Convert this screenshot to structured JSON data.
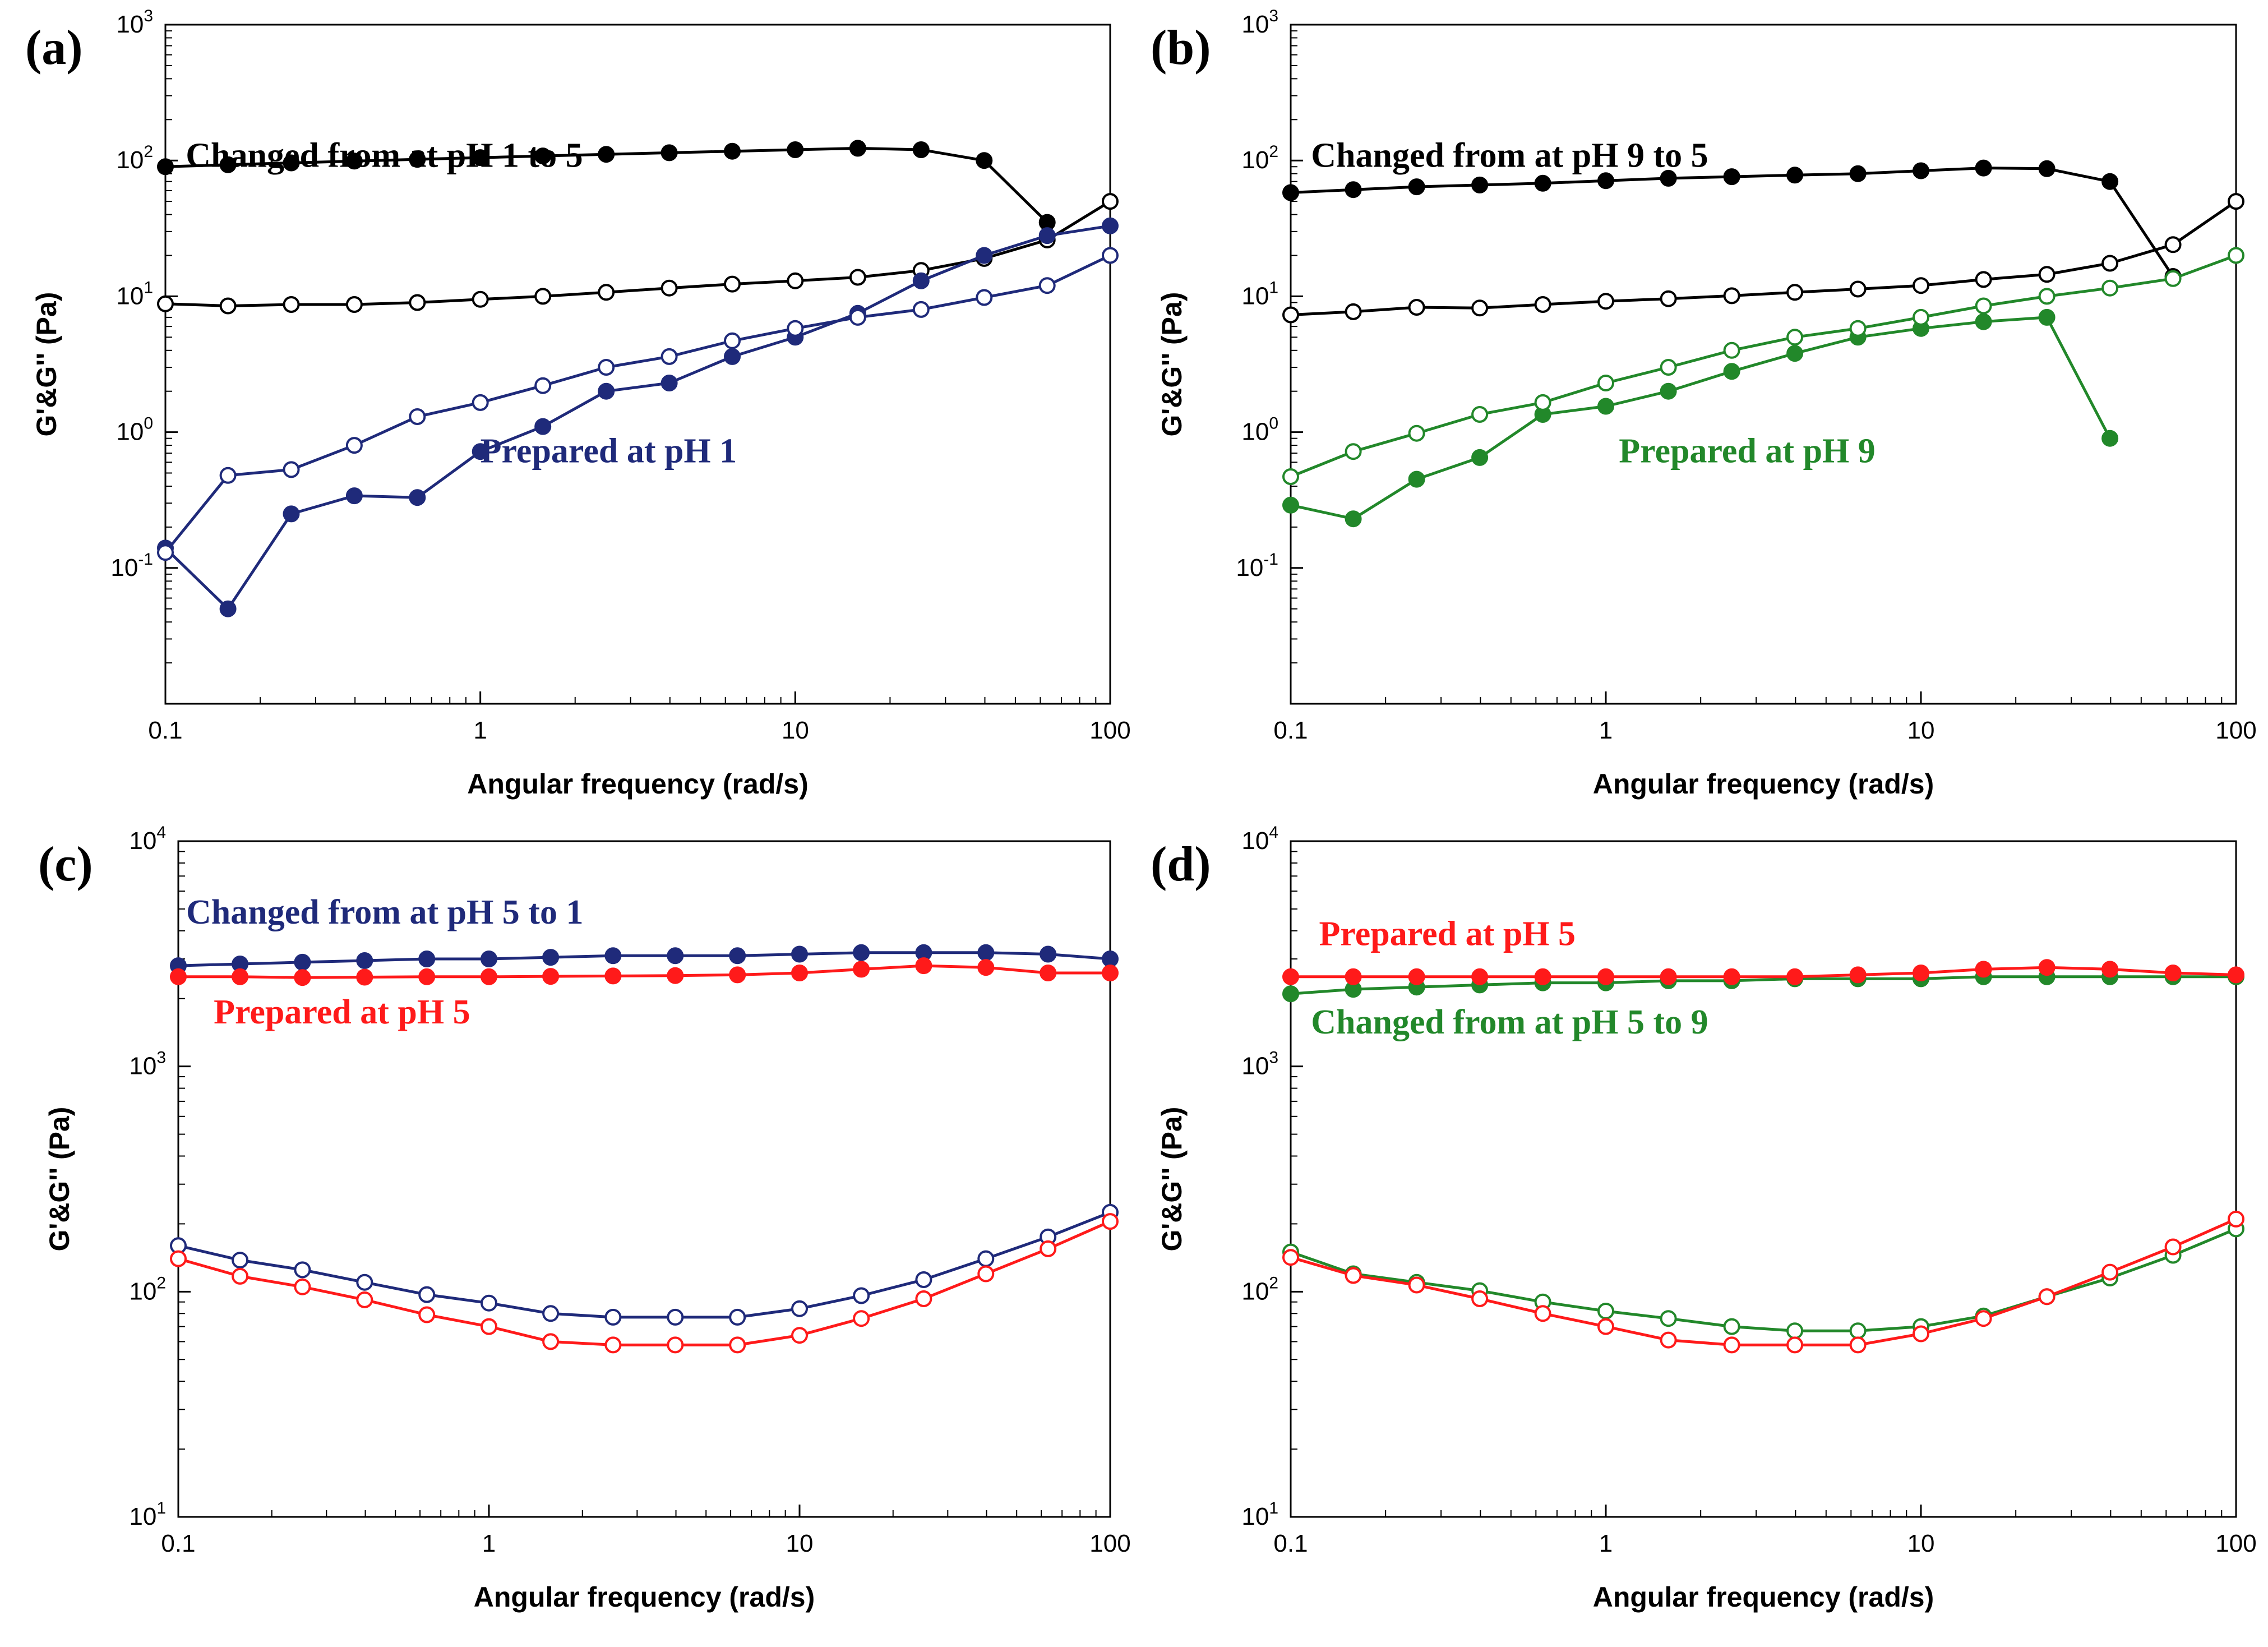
{
  "chart_data": [
    {
      "type": "line",
      "panel_label": "(a)",
      "xlabel": "Angular frequency (rad/s)",
      "ylabel": "G'&G'' (Pa)",
      "x_scale": "log",
      "y_scale": "log",
      "xlim": [
        0.1,
        100
      ],
      "ylim": [
        0.01,
        1000
      ],
      "x_ticks": [
        "0.1",
        "1",
        "10",
        "100"
      ],
      "y_ticks": [
        {
          "v": 1000,
          "base": "10",
          "exp": "3"
        },
        {
          "v": 100,
          "base": "10",
          "exp": "2"
        },
        {
          "v": 10,
          "base": "10",
          "exp": "1"
        },
        {
          "v": 1,
          "base": "10",
          "exp": "0"
        },
        {
          "v": 0.1,
          "base": "10",
          "exp": "-1"
        }
      ],
      "grid": false,
      "x": [
        0.1,
        0.158,
        0.251,
        0.398,
        0.631,
        1,
        1.58,
        2.51,
        3.98,
        6.31,
        10,
        15.8,
        25.1,
        39.8,
        63.1,
        100
      ],
      "series": [
        {
          "color": "#000000",
          "filled": true,
          "values": [
            90,
            93,
            96,
            99,
            102,
            105,
            108,
            111,
            114,
            117,
            120,
            123,
            120,
            100,
            35,
            null
          ]
        },
        {
          "color": "#000000",
          "filled": false,
          "values": [
            8.8,
            8.5,
            8.7,
            8.7,
            9.0,
            9.5,
            10.0,
            10.7,
            11.5,
            12.3,
            13.0,
            13.8,
            15.5,
            19.0,
            26,
            50
          ]
        },
        {
          "color": "#1f2a7a",
          "filled": true,
          "values": [
            0.14,
            0.05,
            0.25,
            0.34,
            0.33,
            0.72,
            1.1,
            2.0,
            2.3,
            3.6,
            5.0,
            7.5,
            13.0,
            20.0,
            28,
            33
          ]
        },
        {
          "color": "#1f2a7a",
          "filled": false,
          "values": [
            0.13,
            0.48,
            0.53,
            0.8,
            1.3,
            1.65,
            2.2,
            3.0,
            3.6,
            4.7,
            5.8,
            7.0,
            8.0,
            9.8,
            12.0,
            20
          ]
        }
      ],
      "annotations": [
        {
          "text": "Changed from at pH 1 to 5",
          "color": "#000000",
          "x": 0.116,
          "y": 90
        },
        {
          "text": "Prepared at pH 1",
          "color": "#1f2a7a",
          "x": 1.0,
          "y": 0.6
        }
      ]
    },
    {
      "type": "line",
      "panel_label": "(b)",
      "xlabel": "Angular frequency (rad/s)",
      "ylabel": "G'&G'' (Pa)",
      "x_scale": "log",
      "y_scale": "log",
      "xlim": [
        0.1,
        100
      ],
      "ylim": [
        0.01,
        1000
      ],
      "x_ticks": [
        "0.1",
        "1",
        "10",
        "100"
      ],
      "y_ticks": [
        {
          "v": 1000,
          "base": "10",
          "exp": "3"
        },
        {
          "v": 100,
          "base": "10",
          "exp": "2"
        },
        {
          "v": 10,
          "base": "10",
          "exp": "1"
        },
        {
          "v": 1,
          "base": "10",
          "exp": "0"
        },
        {
          "v": 0.1,
          "base": "10",
          "exp": "-1"
        }
      ],
      "grid": false,
      "x": [
        0.1,
        0.158,
        0.251,
        0.398,
        0.631,
        1,
        1.58,
        2.51,
        3.98,
        6.31,
        10,
        15.8,
        25.1,
        39.8,
        63.1,
        100
      ],
      "series": [
        {
          "color": "#000000",
          "filled": true,
          "values": [
            58,
            61,
            64,
            66,
            68,
            71,
            74,
            76,
            78,
            80,
            84,
            88,
            87,
            70,
            14,
            null
          ]
        },
        {
          "color": "#000000",
          "filled": false,
          "values": [
            7.3,
            7.7,
            8.3,
            8.2,
            8.7,
            9.2,
            9.6,
            10.1,
            10.7,
            11.3,
            12.0,
            13.3,
            14.5,
            17.5,
            24,
            50
          ]
        },
        {
          "color": "#22882a",
          "filled": true,
          "values": [
            0.29,
            0.23,
            0.45,
            0.65,
            1.35,
            1.55,
            2.0,
            2.8,
            3.8,
            5.0,
            5.8,
            6.5,
            7.0,
            0.9,
            null,
            null
          ]
        },
        {
          "color": "#22882a",
          "filled": false,
          "values": [
            0.47,
            0.72,
            0.98,
            1.35,
            1.65,
            2.3,
            3.0,
            4.0,
            5.0,
            5.8,
            7.0,
            8.5,
            10.0,
            11.5,
            13.5,
            20
          ]
        }
      ],
      "annotations": [
        {
          "text": "Changed from at pH 9 to 5",
          "color": "#000000",
          "x": 0.116,
          "y": 90
        },
        {
          "text": "Prepared at pH 9",
          "color": "#22882a",
          "x": 1.1,
          "y": 0.6
        }
      ]
    },
    {
      "type": "line",
      "panel_label": "(c)",
      "xlabel": "Angular frequency (rad/s)",
      "ylabel": "G'&G'' (Pa)",
      "x_scale": "log",
      "y_scale": "log",
      "xlim": [
        0.1,
        100
      ],
      "ylim": [
        10,
        10000
      ],
      "x_ticks": [
        "0.1",
        "1",
        "10",
        "100"
      ],
      "y_ticks": [
        {
          "v": 10000,
          "base": "10",
          "exp": "4"
        },
        {
          "v": 1000,
          "base": "10",
          "exp": "3"
        },
        {
          "v": 100,
          "base": "10",
          "exp": "2"
        },
        {
          "v": 10,
          "base": "10",
          "exp": "1"
        }
      ],
      "grid": false,
      "x": [
        0.1,
        0.158,
        0.251,
        0.398,
        0.631,
        1,
        1.58,
        2.51,
        3.98,
        6.31,
        10,
        15.8,
        25.1,
        39.8,
        63.1,
        100
      ],
      "series": [
        {
          "color": "#1f2a7a",
          "filled": true,
          "values": [
            2800,
            2850,
            2900,
            2950,
            3000,
            3000,
            3050,
            3100,
            3100,
            3100,
            3150,
            3200,
            3200,
            3200,
            3150,
            3000
          ]
        },
        {
          "color": "#ff1a1a",
          "filled": true,
          "values": [
            2500,
            2500,
            2480,
            2490,
            2500,
            2500,
            2510,
            2520,
            2530,
            2550,
            2600,
            2700,
            2800,
            2750,
            2600,
            2600
          ]
        },
        {
          "color": "#1f2a7a",
          "filled": false,
          "values": [
            160,
            138,
            125,
            110,
            97,
            89,
            80,
            77,
            77,
            77,
            84,
            96,
            113,
            140,
            175,
            225
          ]
        },
        {
          "color": "#ff1a1a",
          "filled": false,
          "values": [
            140,
            117,
            105,
            92,
            79,
            70,
            60,
            58,
            58,
            58,
            64,
            76,
            93,
            120,
            155,
            205
          ]
        }
      ],
      "annotations": [
        {
          "text": "Changed from at pH 5 to 1",
          "color": "#1f2a7a",
          "x": 0.106,
          "y": 4300
        },
        {
          "text": "Prepared at pH 5",
          "color": "#ff1a1a",
          "x": 0.13,
          "y": 1550
        }
      ]
    },
    {
      "type": "line",
      "panel_label": "(d)",
      "xlabel": "Angular frequency (rad/s)",
      "ylabel": "G'&G'' (Pa)",
      "x_scale": "log",
      "y_scale": "log",
      "xlim": [
        0.1,
        100
      ],
      "ylim": [
        10,
        10000
      ],
      "x_ticks": [
        "0.1",
        "1",
        "10",
        "100"
      ],
      "y_ticks": [
        {
          "v": 10000,
          "base": "10",
          "exp": "4"
        },
        {
          "v": 1000,
          "base": "10",
          "exp": "3"
        },
        {
          "v": 100,
          "base": "10",
          "exp": "2"
        },
        {
          "v": 10,
          "base": "10",
          "exp": "1"
        }
      ],
      "grid": false,
      "x": [
        0.1,
        0.158,
        0.251,
        0.398,
        0.631,
        1,
        1.58,
        2.51,
        3.98,
        6.31,
        10,
        15.8,
        25.1,
        39.8,
        63.1,
        100
      ],
      "series": [
        {
          "color": "#22882a",
          "filled": true,
          "values": [
            2100,
            2200,
            2250,
            2300,
            2350,
            2350,
            2400,
            2400,
            2450,
            2450,
            2450,
            2500,
            2500,
            2500,
            2500,
            2500
          ]
        },
        {
          "color": "#ff1a1a",
          "filled": true,
          "values": [
            2500,
            2500,
            2500,
            2500,
            2500,
            2500,
            2500,
            2500,
            2500,
            2550,
            2600,
            2700,
            2750,
            2700,
            2600,
            2550
          ]
        },
        {
          "color": "#22882a",
          "filled": false,
          "values": [
            150,
            120,
            110,
            101,
            90,
            82,
            76,
            70,
            67,
            67,
            70,
            78,
            95,
            115,
            145,
            190
          ]
        },
        {
          "color": "#ff1a1a",
          "filled": false,
          "values": [
            142,
            118,
            107,
            93,
            80,
            70,
            61,
            58,
            58,
            58,
            65,
            76,
            95,
            122,
            158,
            210
          ]
        }
      ],
      "annotations": [
        {
          "text": "Prepared at pH 5",
          "color": "#ff1a1a",
          "x": 0.123,
          "y": 3450
        },
        {
          "text": "Changed from at pH 5 to 9",
          "color": "#22882a",
          "x": 0.116,
          "y": 1400
        }
      ]
    }
  ]
}
